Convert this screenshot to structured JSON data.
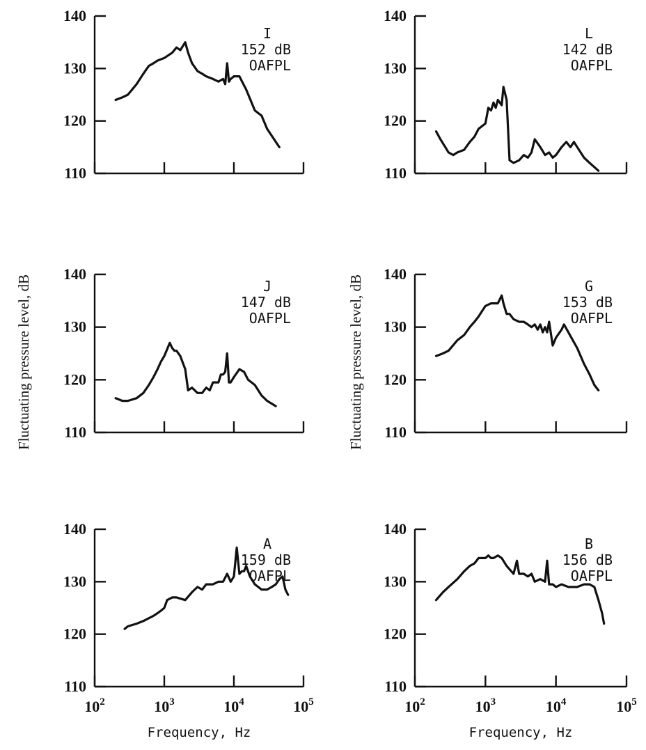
{
  "chart_data": [
    {
      "type": "line",
      "annotation": [
        "I",
        "152 dB",
        "OAFPL"
      ],
      "ylim": [
        110,
        140
      ],
      "xlim": [
        100,
        100000
      ],
      "yticks": [
        110,
        120,
        130,
        140
      ],
      "xscale": "log",
      "x": [
        200,
        250,
        300,
        400,
        500,
        600,
        700,
        800,
        1000,
        1300,
        1500,
        1700,
        2000,
        2200,
        2500,
        3000,
        3500,
        4000,
        5000,
        6000,
        7000,
        7500,
        8000,
        8500,
        9000,
        10000,
        12000,
        15000,
        20000,
        25000,
        30000,
        40000,
        45000
      ],
      "y": [
        124,
        124.5,
        125,
        127,
        129,
        130.5,
        131,
        131.5,
        132,
        133,
        134,
        133.5,
        135,
        133,
        131,
        129.5,
        129,
        128.5,
        128,
        127.5,
        128,
        127,
        131,
        127.5,
        128,
        128.5,
        128.5,
        126,
        122,
        121,
        118.5,
        116,
        115
      ]
    },
    {
      "type": "line",
      "annotation": [
        "L",
        "142 dB",
        "OAFPL"
      ],
      "ylim": [
        110,
        140
      ],
      "xlim": [
        100,
        100000
      ],
      "yticks": [
        110,
        120,
        130,
        140
      ],
      "xscale": "log",
      "x": [
        200,
        230,
        270,
        300,
        350,
        400,
        500,
        600,
        700,
        800,
        1000,
        1100,
        1200,
        1300,
        1400,
        1500,
        1700,
        1800,
        2000,
        2200,
        2500,
        3000,
        3500,
        4000,
        4500,
        5000,
        6000,
        7000,
        8000,
        9000,
        10000,
        12000,
        14000,
        16000,
        18000,
        20000,
        25000,
        30000,
        40000
      ],
      "y": [
        118,
        116.5,
        115,
        114,
        113.5,
        114,
        114.5,
        116,
        117,
        118.5,
        119.5,
        122.5,
        122,
        123.5,
        122.5,
        124,
        123,
        126.5,
        124,
        112.5,
        112,
        112.5,
        113.5,
        113,
        114,
        116.5,
        115,
        113.5,
        114,
        113,
        113.5,
        115,
        116,
        115,
        116,
        115,
        113,
        112,
        110.5
      ]
    },
    {
      "type": "line",
      "annotation": [
        "J",
        "147 dB",
        "OAFPL"
      ],
      "ylim": [
        110,
        140
      ],
      "xlim": [
        100,
        100000
      ],
      "yticks": [
        110,
        120,
        130,
        140
      ],
      "xscale": "log",
      "x": [
        200,
        250,
        300,
        400,
        500,
        600,
        700,
        800,
        900,
        1000,
        1200,
        1300,
        1400,
        1500,
        1700,
        2000,
        2200,
        2500,
        3000,
        3500,
        4000,
        4500,
        5000,
        6000,
        6500,
        7000,
        7500,
        8000,
        8500,
        9000,
        10000,
        12000,
        14000,
        16000,
        20000,
        25000,
        30000,
        40000
      ],
      "y": [
        116.5,
        116,
        116,
        116.5,
        117.5,
        119,
        120.5,
        122,
        123.5,
        124.5,
        127,
        126,
        125.5,
        125.5,
        124.5,
        122,
        118,
        118.5,
        117.5,
        117.5,
        118.5,
        118,
        119.5,
        119.5,
        121,
        121,
        121.5,
        125,
        119.5,
        119.5,
        120.5,
        122,
        121.5,
        120,
        119,
        117,
        116,
        115
      ]
    },
    {
      "type": "line",
      "annotation": [
        "G",
        "153 dB",
        "OAFPL"
      ],
      "ylim": [
        110,
        140
      ],
      "xlim": [
        100,
        100000
      ],
      "yticks": [
        110,
        120,
        130,
        140
      ],
      "xscale": "log",
      "x": [
        200,
        250,
        300,
        400,
        500,
        600,
        700,
        800,
        1000,
        1200,
        1500,
        1700,
        1800,
        2000,
        2200,
        2500,
        3000,
        3500,
        4000,
        4500,
        5000,
        5500,
        6000,
        6500,
        7000,
        7500,
        8000,
        9000,
        10000,
        12000,
        13000,
        15000,
        20000,
        25000,
        30000,
        35000,
        40000
      ],
      "y": [
        124.5,
        125,
        125.5,
        127.5,
        128.5,
        130,
        131,
        132,
        134,
        134.5,
        134.5,
        136,
        134.5,
        132.5,
        132.5,
        131.5,
        131,
        131,
        130.5,
        130,
        130.5,
        129.5,
        130.5,
        129,
        130,
        129,
        131,
        126.5,
        128,
        129.5,
        130.5,
        129,
        126,
        123,
        121,
        119,
        118
      ]
    },
    {
      "type": "line",
      "annotation": [
        "A",
        "159 dB",
        "OAFPL"
      ],
      "ylim": [
        110,
        140
      ],
      "xlim": [
        100,
        100000
      ],
      "yticks": [
        110,
        120,
        130,
        140
      ],
      "xlabel": "Frequency,  Hz",
      "xticks": [
        100,
        1000,
        10000,
        100000
      ],
      "xscale": "log",
      "x": [
        270,
        300,
        400,
        500,
        700,
        800,
        900,
        1000,
        1100,
        1300,
        1500,
        2000,
        2500,
        3000,
        3500,
        4000,
        5000,
        6000,
        7000,
        8000,
        9000,
        10000,
        11000,
        12000,
        13000,
        14000,
        15000,
        17000,
        20000,
        25000,
        30000,
        35000,
        40000,
        45000,
        50000,
        55000,
        60000
      ],
      "y": [
        121,
        121.5,
        122,
        122.5,
        123.5,
        124,
        124.5,
        125,
        126.5,
        127,
        127,
        126.5,
        128,
        129,
        128.5,
        129.5,
        129.5,
        130,
        130,
        131.5,
        130,
        131,
        136.5,
        131.5,
        132,
        132,
        133,
        131,
        129.5,
        128.5,
        128.5,
        129,
        129.5,
        130.5,
        131,
        128.5,
        127.5
      ]
    },
    {
      "type": "line",
      "annotation": [
        "B",
        "156 dB",
        "OAFPL"
      ],
      "ylim": [
        110,
        140
      ],
      "xlim": [
        100,
        100000
      ],
      "yticks": [
        110,
        120,
        130,
        140
      ],
      "xlabel": "Frequency,  Hz",
      "xticks": [
        100,
        1000,
        10000,
        100000
      ],
      "xscale": "log",
      "x": [
        200,
        250,
        300,
        400,
        500,
        600,
        700,
        800,
        900,
        1000,
        1100,
        1200,
        1300,
        1500,
        1700,
        2000,
        2500,
        2800,
        3000,
        3500,
        4000,
        4500,
        5000,
        6000,
        7000,
        7500,
        8000,
        9000,
        10000,
        12000,
        15000,
        20000,
        25000,
        30000,
        35000,
        40000,
        45000,
        48000
      ],
      "y": [
        126.5,
        128,
        129,
        130.5,
        132,
        133,
        133.5,
        134.5,
        134.5,
        134.5,
        135,
        134.5,
        134.5,
        135,
        134.5,
        133,
        131.5,
        134,
        131.5,
        131.5,
        131,
        131.5,
        130,
        130.5,
        130,
        134,
        129.5,
        129.5,
        129,
        129.5,
        129,
        129,
        129.5,
        129.5,
        129,
        126.5,
        124,
        122
      ]
    }
  ],
  "tick_labels": {
    "y": [
      "110",
      "120",
      "130",
      "140"
    ],
    "x": [
      {
        "base": "10",
        "exp": "2"
      },
      {
        "base": "10",
        "exp": "3"
      },
      {
        "base": "10",
        "exp": "4"
      },
      {
        "base": "10",
        "exp": "5"
      }
    ]
  },
  "ylabel": "Fluctuating pressure level, dB"
}
